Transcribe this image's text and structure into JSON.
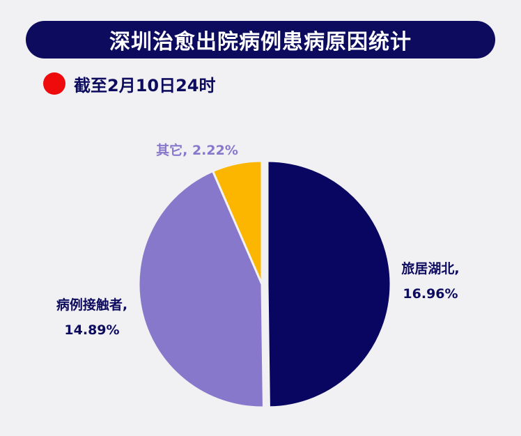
{
  "header": {
    "title": "深圳治愈出院病例患病原因统计",
    "subtitle": "截至2月10日24时"
  },
  "colors": {
    "title_bg": "#0d0b5e",
    "dot": "#ef0b0b"
  },
  "chart_data": {
    "type": "pie",
    "title": "深圳治愈出院病例患病原因统计",
    "slices": [
      {
        "label": "旅居湖北,",
        "value": 16.96,
        "value_label": "16.96%",
        "color": "#080660"
      },
      {
        "label": "病例接触者,",
        "value": 14.89,
        "value_label": "14.89%",
        "color": "#8878cc"
      },
      {
        "label": "其它,",
        "value": 2.22,
        "value_label": "2.22%",
        "color": "#fdb600"
      }
    ],
    "start_angle": "12 o'clock",
    "direction": "clockwise",
    "exploded_slice": "旅居湖北,"
  }
}
